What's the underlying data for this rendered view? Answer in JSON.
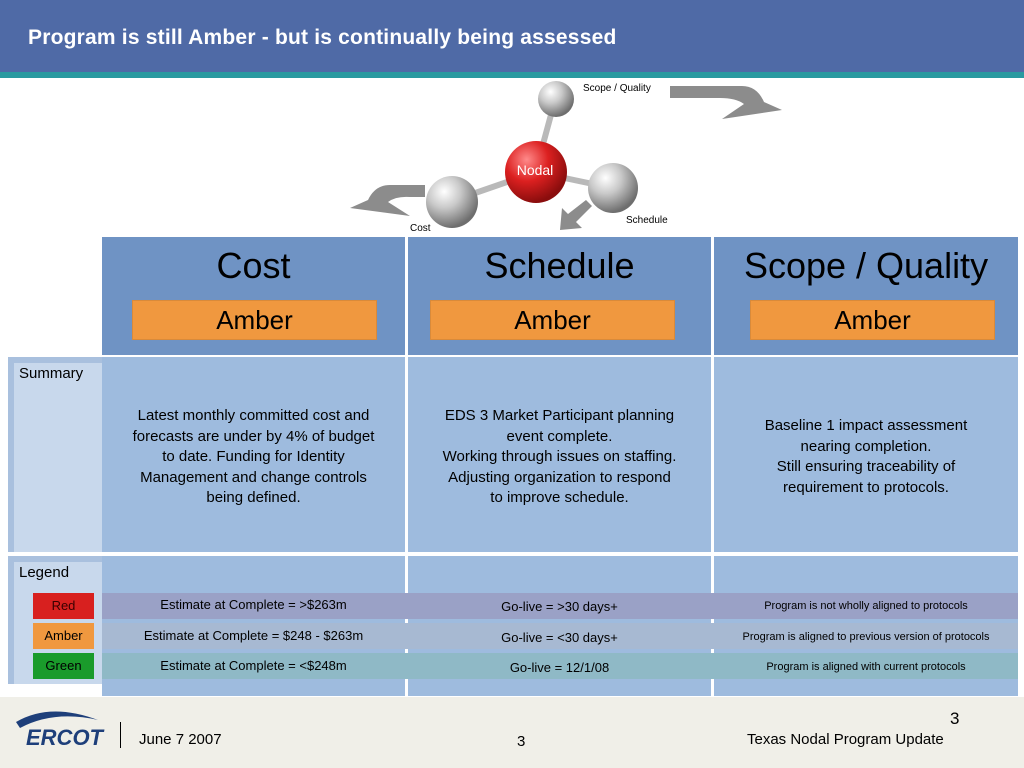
{
  "slide": {
    "title": "Program is still Amber - but is continually being assessed",
    "page_number": "3"
  },
  "diagram": {
    "center_label": "Nodal",
    "node_labels": {
      "scope_quality": "Scope / Quality",
      "schedule": "Schedule",
      "cost": "Cost"
    }
  },
  "columns": [
    {
      "title": "Cost",
      "status": "Amber"
    },
    {
      "title": "Schedule",
      "status": "Amber"
    },
    {
      "title": "Scope / Quality",
      "status": "Amber"
    }
  ],
  "summary": {
    "label": "Summary",
    "cost": [
      "Latest monthly committed cost and",
      "forecasts are under by 4% of budget",
      "to date. Funding for Identity",
      "Management and change controls",
      "being defined."
    ],
    "schedule": [
      "EDS 3 Market Participant planning",
      "event complete.",
      "Working through issues on staffing.",
      "Adjusting organization to respond",
      "to improve schedule."
    ],
    "scope": [
      "Baseline 1 impact assessment",
      "nearing completion.",
      "Still ensuring traceability of",
      "requirement to protocols."
    ]
  },
  "legend": {
    "label": "Legend",
    "rows": [
      {
        "status": "Red",
        "color": "#d8201f",
        "row_bg": "#9aa1c6",
        "cost": "Estimate at Complete = >$263m",
        "schedule": "Go-live = >30 days+",
        "scope": "Program is not wholly aligned to protocols"
      },
      {
        "status": "Amber",
        "color": "#f0983f",
        "row_bg": "#a7b9d2",
        "cost": "Estimate at Complete = $248 - $263m",
        "schedule": "Go-live = <30 days+",
        "scope": "Program is aligned to previous version of protocols"
      },
      {
        "status": "Green",
        "color": "#1a9b2b",
        "row_bg": "#8fb9c6",
        "cost": "Estimate at Complete = <$248m",
        "schedule": "Go-live = 12/1/08",
        "scope": "Program is aligned with current protocols"
      }
    ]
  },
  "footer": {
    "logo_text": "ERCOT",
    "date": "June 7 2007",
    "page": "3",
    "program": "Texas Nodal Program Update"
  },
  "colors": {
    "header": "#4f6aa6",
    "accent_stripe": "#2a9aa0",
    "amber": "#f0983f",
    "column_header": "#6f93c4",
    "column_body": "#9ebbde"
  }
}
